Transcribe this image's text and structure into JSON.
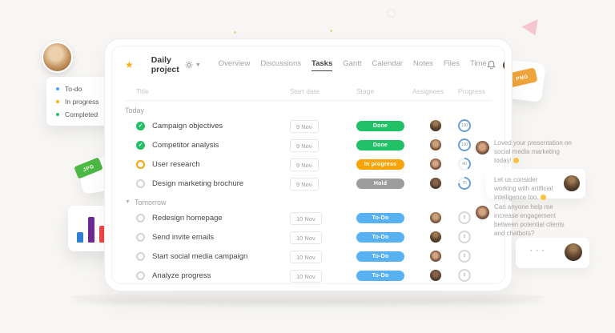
{
  "decor": {
    "png_tag": "PNG",
    "jpg_tag": "JPG",
    "chart_bars": [
      {
        "height": 13,
        "color": "#2f7fd3"
      },
      {
        "height": 32,
        "color": "#6a2c91"
      },
      {
        "height": 21,
        "color": "#ee4647"
      },
      {
        "height": 13,
        "color": "#b51d54"
      }
    ]
  },
  "legend": {
    "items": [
      {
        "label": "To-do",
        "color": "#4aa3f0"
      },
      {
        "label": "In progress",
        "color": "#f5b40a"
      },
      {
        "label": "Completed",
        "color": "#2dbe60"
      }
    ]
  },
  "window": {
    "star_icon": "★",
    "project_name": "Daily project",
    "project_dot_color": "#2e9ef4",
    "tabs": [
      {
        "label": "Overview",
        "active": false
      },
      {
        "label": "Discussions",
        "active": false
      },
      {
        "label": "Tasks",
        "active": true
      },
      {
        "label": "Gantt",
        "active": false
      },
      {
        "label": "Calendar",
        "active": false
      },
      {
        "label": "Notes",
        "active": false
      },
      {
        "label": "Files",
        "active": false
      },
      {
        "label": "Time",
        "active": false
      }
    ],
    "columns": [
      "Title",
      "Start date",
      "Stage",
      "Assignees",
      "Progress"
    ],
    "sections": [
      {
        "title": "Today",
        "chevron": false,
        "rows": [
          {
            "title": "Campaign objectives",
            "status": "done",
            "date": "9 Nov",
            "stage": "Done",
            "stage_color": "#22c067",
            "progress": 100,
            "ring_color": "#6b9fd8",
            "avatar": "man-hat"
          },
          {
            "title": "Competitor analysis",
            "status": "done",
            "date": "9 Nov",
            "stage": "Done",
            "stage_color": "#22c067",
            "progress": 100,
            "ring_color": "#6b9fd8",
            "avatar": "woman-curly"
          },
          {
            "title": "User research",
            "status": "inprogress",
            "date": "9 Nov",
            "stage": "In progress",
            "stage_color": "#f7a409",
            "progress": 40,
            "ring_color": "#6b9fd8",
            "avatar": "woman"
          },
          {
            "title": "Design marketing brochure",
            "status": "open",
            "date": "9 Nov",
            "stage": "Hold",
            "stage_color": "#9d9d9d",
            "progress": 75,
            "ring_color": "#6b9fd8",
            "avatar": "man-dark"
          }
        ]
      },
      {
        "title": "Tomorrow",
        "chevron": true,
        "rows": [
          {
            "title": "Redesign homepage",
            "status": "open",
            "date": "10 Nov",
            "stage": "To-Do",
            "stage_color": "#57b1f2",
            "progress": 0,
            "ring_color": "#d9d7d4",
            "avatar": "woman-curly"
          },
          {
            "title": "Send invite emails",
            "status": "open",
            "date": "10 Nov",
            "stage": "To-Do",
            "stage_color": "#57b1f2",
            "progress": 0,
            "ring_color": "#d9d7d4",
            "avatar": "man-hat"
          },
          {
            "title": "Start social media campaign",
            "status": "open",
            "date": "10 Nov",
            "stage": "To-Do",
            "stage_color": "#57b1f2",
            "progress": 0,
            "ring_color": "#d9d7d4",
            "avatar": "woman"
          },
          {
            "title": "Analyze progress",
            "status": "open",
            "date": "10 Nov",
            "stage": "To-Do",
            "stage_color": "#57b1f2",
            "progress": 0,
            "ring_color": "#d9d7d4",
            "avatar": "man-dark"
          }
        ]
      }
    ]
  },
  "chat": {
    "messages": [
      {
        "text": "Loved your presentation on social media marketing today!",
        "emoji": true,
        "typing": false,
        "side": "left",
        "card": false,
        "avatar": "woman"
      },
      {
        "text": "Let us consider working with artificial intelligence too.",
        "emoji": true,
        "typing": false,
        "side": "right",
        "card": true,
        "avatar": "man-hat"
      },
      {
        "text": "Can anyone help me increase engagement between potential clients and chatbots?",
        "emoji": false,
        "typing": false,
        "side": "left",
        "card": false,
        "avatar": "woman"
      },
      {
        "text": "···",
        "emoji": false,
        "typing": true,
        "side": "right",
        "card": true,
        "avatar": "man-hat"
      }
    ]
  }
}
